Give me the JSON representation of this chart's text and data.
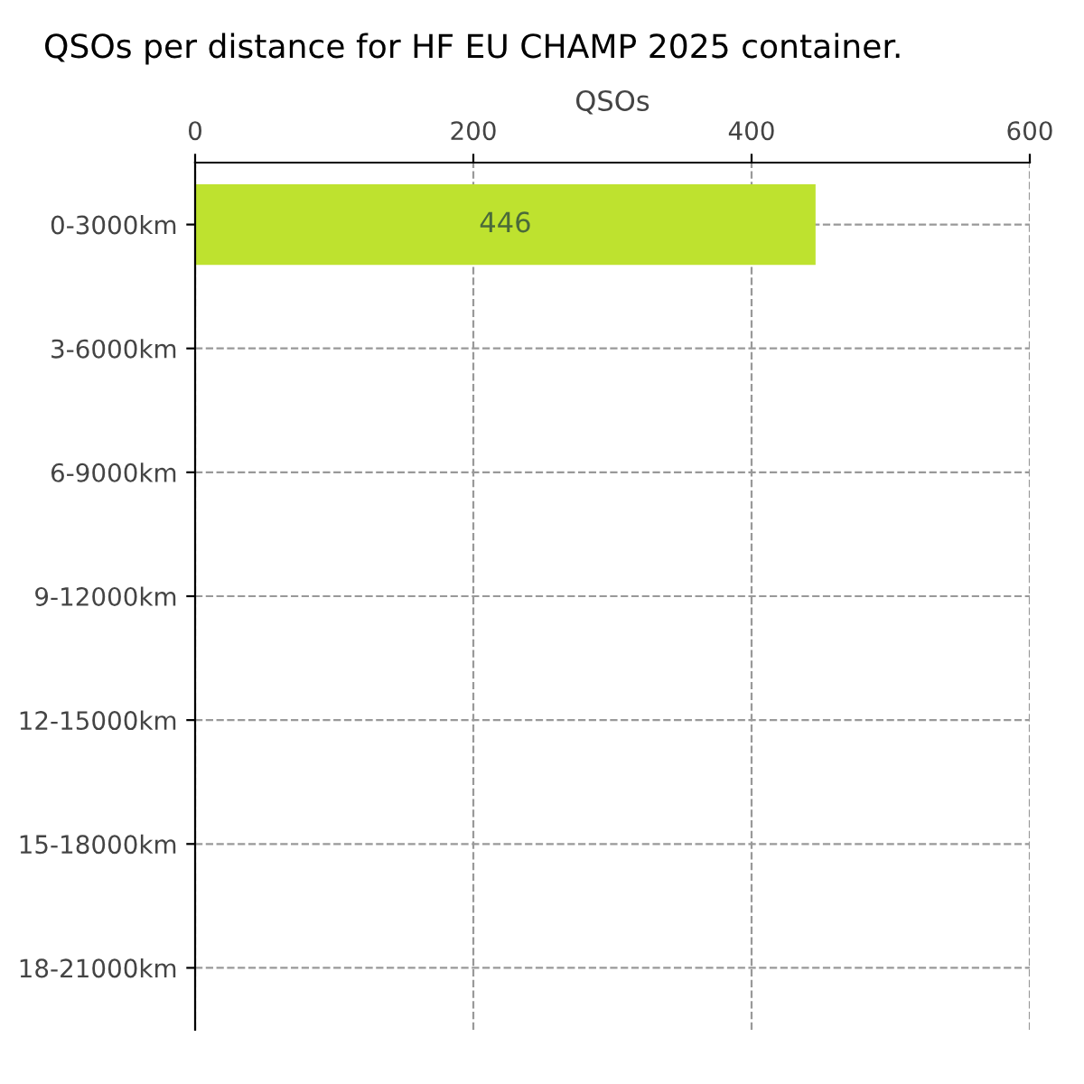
{
  "chart_data": {
    "type": "bar",
    "orientation": "horizontal",
    "title": "QSOs per distance for HF EU CHAMP 2025 container.",
    "xlabel": "QSOs",
    "categories": [
      "0-3000km",
      "3-6000km",
      "6-9000km",
      "9-12000km",
      "12-15000km",
      "15-18000km",
      "18-21000km"
    ],
    "values": [
      446,
      0,
      0,
      0,
      0,
      0,
      0
    ],
    "value_labels": [
      "446",
      null,
      null,
      null,
      null,
      null,
      null
    ],
    "color": "#bee22f",
    "xlim": [
      0,
      600
    ],
    "xticks": [
      0,
      200,
      400,
      600
    ],
    "grid": true
  }
}
